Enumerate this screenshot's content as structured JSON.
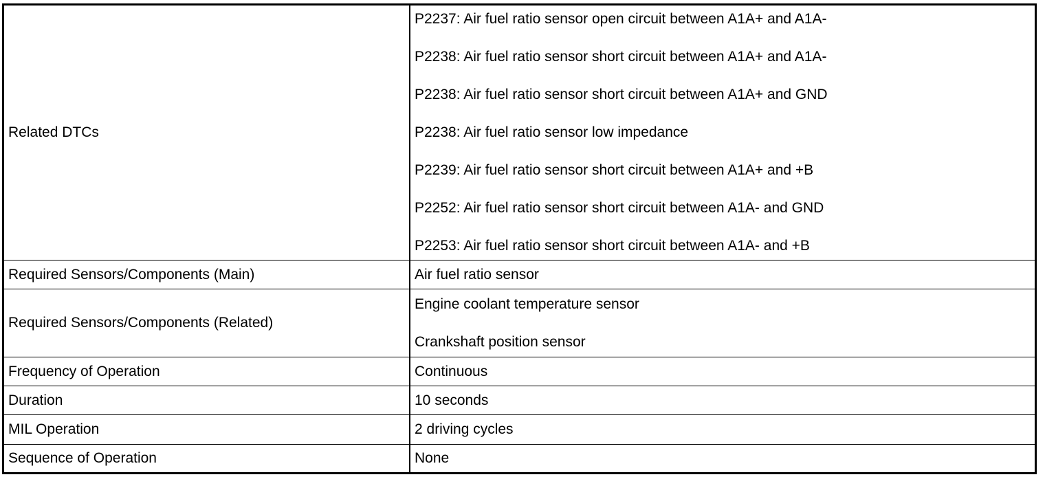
{
  "rows": [
    {
      "label": "Related DTCs",
      "values": [
        "P2237: Air fuel ratio sensor open circuit between A1A+ and A1A-",
        "P2238: Air fuel ratio sensor short circuit between A1A+ and A1A-",
        "P2238: Air fuel ratio sensor short circuit between A1A+ and GND",
        "P2238: Air fuel ratio sensor low impedance",
        "P2239: Air fuel ratio sensor short circuit between A1A+ and +B",
        "P2252: Air fuel ratio sensor short circuit between A1A- and GND",
        "P2253: Air fuel ratio sensor short circuit between A1A- and +B"
      ]
    },
    {
      "label": "Required Sensors/Components (Main)",
      "values": [
        "Air fuel ratio sensor"
      ]
    },
    {
      "label": "Required Sensors/Components (Related)",
      "values": [
        "Engine coolant temperature sensor",
        "Crankshaft position sensor"
      ]
    },
    {
      "label": "Frequency of Operation",
      "values": [
        "Continuous"
      ]
    },
    {
      "label": "Duration",
      "values": [
        "10 seconds"
      ]
    },
    {
      "label": "MIL Operation",
      "values": [
        "2 driving cycles"
      ]
    },
    {
      "label": "Sequence of Operation",
      "values": [
        "None"
      ]
    }
  ]
}
